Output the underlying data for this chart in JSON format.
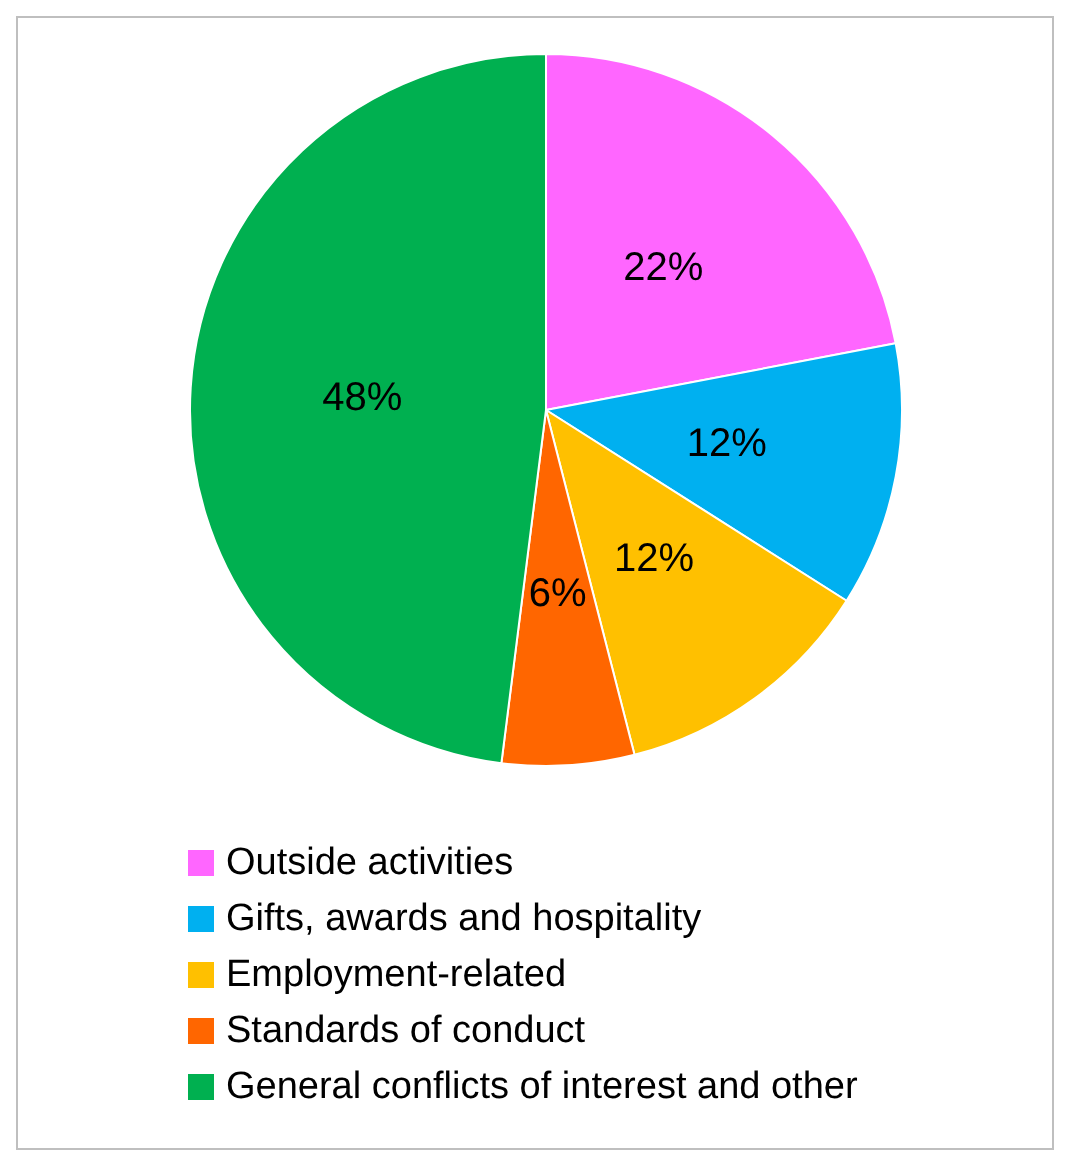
{
  "chart_data": {
    "type": "pie",
    "categories": [
      "Outside activities",
      "Gifts, awards and hospitality",
      "Employment-related",
      "Standards of conduct",
      "General conflicts of interest and other"
    ],
    "values": [
      22,
      12,
      12,
      6,
      48
    ],
    "colors": [
      "#ff66ff",
      "#00b0f0",
      "#ffc000",
      "#ff6600",
      "#00b050"
    ],
    "value_labels": [
      "22%",
      "12%",
      "12%",
      "6%",
      "48%"
    ],
    "legend": "bottom"
  }
}
